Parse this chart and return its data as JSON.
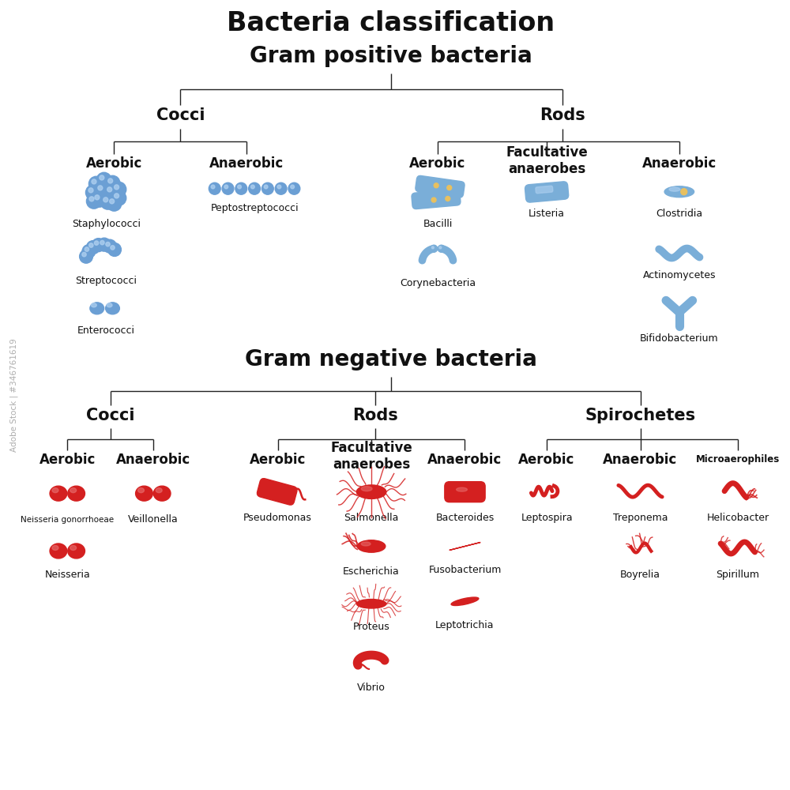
{
  "title": "Bacteria classification",
  "gram_positive_title": "Gram positive bacteria",
  "gram_negative_title": "Gram negative bacteria",
  "bg_color": "#ffffff",
  "blue_color": "#6b9fd4",
  "blue_dark": "#5580b8",
  "blue_light": "#9bbfe8",
  "red_color": "#d42020",
  "red_light": "#e85050",
  "line_color": "#222222",
  "title_fontsize": 24,
  "section_fontsize": 20,
  "category_fontsize": 15,
  "subcategory_fontsize": 12,
  "label_fontsize": 9
}
